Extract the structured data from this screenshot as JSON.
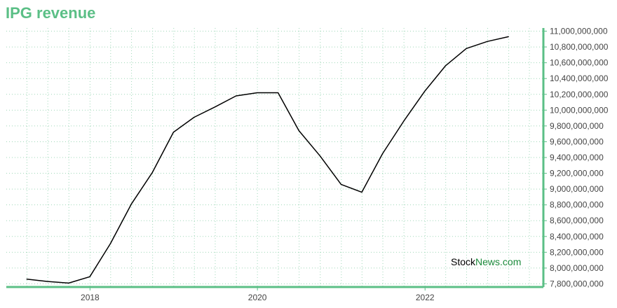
{
  "title": "IPG revenue",
  "watermark": {
    "part1": "Stock",
    "part2": "News.com"
  },
  "colors": {
    "title": "#5bbf86",
    "axis": "#5bbf86",
    "line": "#000000",
    "grid": "#9fd8b8",
    "watermark_news": "#1a8a3a"
  },
  "chart_data": {
    "type": "line",
    "title": "IPG revenue",
    "xlabel": "",
    "ylabel": "",
    "x_ticks": [
      "2018",
      "2020",
      "2022"
    ],
    "y_ticks": [
      7800000000,
      8000000000,
      8200000000,
      8400000000,
      8600000000,
      8800000000,
      9000000000,
      9200000000,
      9400000000,
      9600000000,
      9800000000,
      10000000000,
      10200000000,
      10400000000,
      10600000000,
      10800000000,
      11000000000
    ],
    "ylim": [
      7760000000,
      11040000000
    ],
    "xlim": [
      "2017-01-01",
      "2023-06-01"
    ],
    "grid": true,
    "y_axis_side": "right",
    "series": [
      {
        "x": [
          "2017-03-31",
          "2017-06-30",
          "2017-09-30",
          "2017-12-31",
          "2018-03-31",
          "2018-06-30",
          "2018-09-30",
          "2018-12-31",
          "2019-03-31",
          "2019-06-30",
          "2019-09-30",
          "2019-12-31",
          "2020-03-31",
          "2020-06-30",
          "2020-09-30",
          "2020-12-31",
          "2021-03-31",
          "2021-06-30",
          "2021-09-30",
          "2021-12-31",
          "2022-03-31",
          "2022-06-30",
          "2022-09-30",
          "2022-12-31"
        ],
        "values": [
          7860000000,
          7830000000,
          7810000000,
          7890000000,
          8310000000,
          8810000000,
          9210000000,
          9720000000,
          9910000000,
          10040000000,
          10180000000,
          10220000000,
          10220000000,
          9740000000,
          9420000000,
          9060000000,
          8960000000,
          9450000000,
          9860000000,
          10240000000,
          10560000000,
          10780000000,
          10870000000,
          10930000000
        ]
      }
    ]
  }
}
